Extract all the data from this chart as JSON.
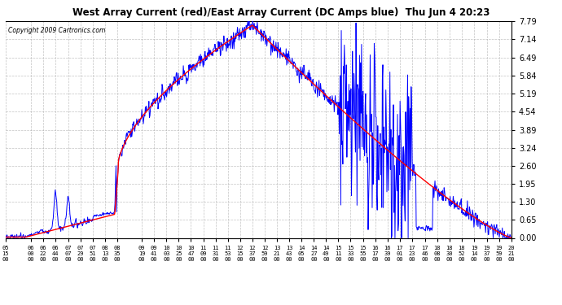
{
  "title": "West Array Current (red)/East Array Current (DC Amps blue)  Thu Jun 4 20:23",
  "copyright": "Copyright 2009 Cartronics.com",
  "ylabel_right_ticks": [
    0.0,
    0.65,
    1.3,
    1.95,
    2.6,
    3.24,
    3.89,
    4.54,
    5.19,
    5.84,
    6.49,
    7.14,
    7.79
  ],
  "ylim": [
    0.0,
    7.79
  ],
  "background_color": "#ffffff",
  "plot_bg_color": "#ffffff",
  "grid_color": "#aaaaaa",
  "red_color": "#ff0000",
  "blue_color": "#0000ff",
  "x_labels": [
    "05:15",
    "06:00",
    "06:22",
    "06:44",
    "07:07",
    "07:29",
    "07:51",
    "08:13",
    "08:35",
    "09:19",
    "09:41",
    "10:03",
    "10:25",
    "10:47",
    "11:09",
    "11:31",
    "11:53",
    "12:15",
    "12:37",
    "12:59",
    "13:21",
    "13:43",
    "14:05",
    "14:27",
    "14:49",
    "15:11",
    "15:33",
    "15:55",
    "16:17",
    "16:39",
    "17:01",
    "17:23",
    "17:46",
    "18:08",
    "18:30",
    "18:52",
    "19:14",
    "19:37",
    "19:59",
    "20:21"
  ],
  "start_time": "05:15",
  "end_time": "20:21",
  "n_points": 1000
}
